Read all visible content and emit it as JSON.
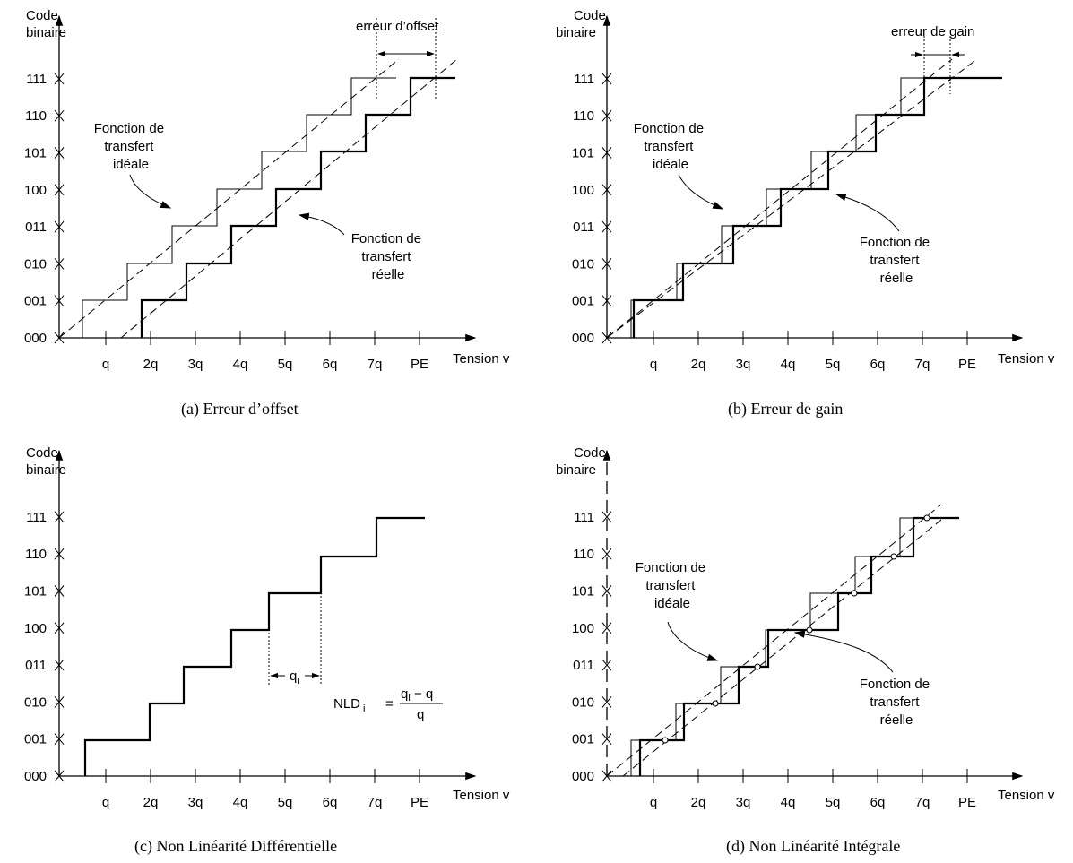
{
  "common": {
    "y_axis_line1": "Code",
    "y_axis_line2": "binaire",
    "x_axis_label": "Tension v",
    "codes": [
      "000",
      "001",
      "010",
      "011",
      "100",
      "101",
      "110",
      "111"
    ],
    "x_ticks": [
      "q",
      "2q",
      "3q",
      "4q",
      "5q",
      "6q",
      "7q",
      "PE"
    ]
  },
  "panel_a": {
    "caption": "(a)  Erreur d’offset",
    "error_label": "erreur d’offset",
    "ideal_label": [
      "Fonction de",
      "transfert",
      "idéale"
    ],
    "real_label": [
      "Fonction de",
      "transfert",
      "réelle"
    ]
  },
  "panel_b": {
    "caption": "(b)  Erreur de gain",
    "error_label": "erreur de gain",
    "ideal_label": [
      "Fonction de",
      "transfert",
      "idéale"
    ],
    "real_label": [
      "Fonction de",
      "transfert",
      "réelle"
    ]
  },
  "panel_c": {
    "caption": "(c)  Non Linéarité Différentielle",
    "qi_label": "q",
    "qi_sub": "i",
    "formula_lhs": "NLD",
    "formula_sub": "i",
    "formula_eq": "=",
    "formula_num": "q",
    "formula_num_sub": "i",
    "formula_num_rest": " − q",
    "formula_den": "q"
  },
  "panel_d": {
    "caption": "(d)  Non Linéarité Intégrale",
    "ideal_label": [
      "Fonction de",
      "transfert",
      "idéale"
    ],
    "real_label": [
      "Fonction de",
      "transfert",
      "réelle"
    ]
  }
}
